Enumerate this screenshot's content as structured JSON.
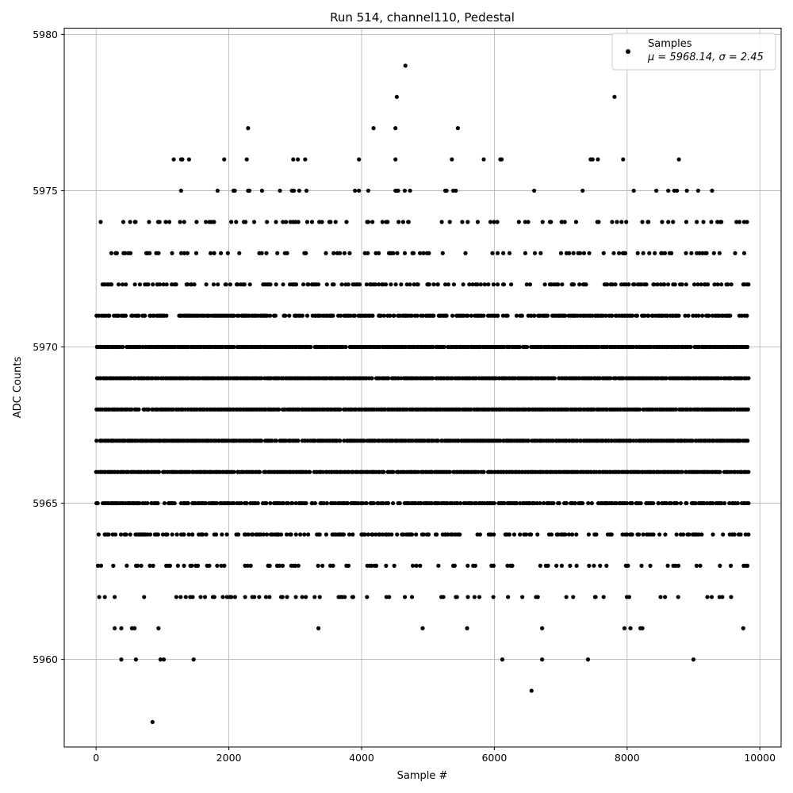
{
  "chart_data": {
    "type": "scatter",
    "title": "Run 514, channel110, Pedestal",
    "xlabel": "Sample #",
    "ylabel": "ADC Counts",
    "xlim": [
      -480,
      10320
    ],
    "ylim": [
      5957.2,
      5980.2
    ],
    "xticks": [
      0,
      2000,
      4000,
      6000,
      8000,
      10000
    ],
    "xtick_labels": [
      "0",
      "2000",
      "4000",
      "6000",
      "8000",
      "10000"
    ],
    "yticks": [
      5960,
      5965,
      5970,
      5975,
      5980
    ],
    "ytick_labels": [
      "5960",
      "5965",
      "5970",
      "5975",
      "5980"
    ],
    "grid": true,
    "legend": {
      "placement": "top-right",
      "label": "Samples",
      "stats_prefix": "μ = 5968.14, ",
      "stats_suffix": "σ = 2.45"
    },
    "series": [
      {
        "name": "Samples",
        "color": "#000000",
        "marker": "circle",
        "count": 9830,
        "x_start": 0,
        "x_end": 9829,
        "integer_values": true,
        "mean": 5968.14,
        "std": 2.45,
        "row_coverage": [
          {
            "y": 5958,
            "density": "single",
            "x": [
              850
            ]
          },
          {
            "y": 5959,
            "density": "single",
            "x": [
              6560
            ]
          },
          {
            "y": 5960,
            "density": "rare",
            "x": [
              380,
              600,
              970,
              1020,
              1470,
              6120,
              6720,
              7410,
              9000
            ]
          },
          {
            "y": 5961,
            "density": "rare",
            "x": [
              280,
              380,
              540,
              580,
              940,
              3350,
              4920,
              5590,
              6720,
              7960,
              8050,
              8200,
              8230,
              9750
            ]
          },
          {
            "y": 5962,
            "density": "sparse"
          },
          {
            "y": 5963,
            "density": "sparse"
          },
          {
            "y": 5964,
            "density": "medium"
          },
          {
            "y": 5965,
            "density": "dense"
          },
          {
            "y": 5966,
            "density": "full"
          },
          {
            "y": 5967,
            "density": "full"
          },
          {
            "y": 5968,
            "density": "full"
          },
          {
            "y": 5969,
            "density": "full"
          },
          {
            "y": 5970,
            "density": "full"
          },
          {
            "y": 5971,
            "density": "dense"
          },
          {
            "y": 5972,
            "density": "medium"
          },
          {
            "y": 5973,
            "density": "sparse"
          },
          {
            "y": 5974,
            "density": "sparse"
          },
          {
            "y": 5975,
            "density": "rare",
            "x": [
              1280,
              1830,
              2070,
              2090,
              2290,
              2310,
              2500,
              2770,
              2950,
              2980,
              3060,
              3170,
              3900,
              3960,
              4100,
              4510,
              4530,
              4550,
              4650,
              4730,
              5260,
              5280,
              5380,
              5420,
              6600,
              7330,
              8100,
              8440,
              8620,
              8710,
              8750,
              8900,
              9070,
              9280
            ]
          },
          {
            "y": 5976,
            "density": "rare",
            "x": [
              1170,
              1280,
              1300,
              1400,
              1930,
              2270,
              2970,
              3040,
              3150,
              3960,
              4510,
              5360,
              5840,
              6090,
              6110,
              7450,
              7480,
              7560,
              7940,
              8780
            ]
          },
          {
            "y": 5977,
            "density": "rare",
            "x": [
              2290,
              4180,
              4510,
              5450
            ]
          },
          {
            "y": 5978,
            "density": "rare",
            "x": [
              4530,
              7810
            ]
          },
          {
            "y": 5979,
            "density": "rare",
            "x": [
              4660
            ]
          }
        ]
      }
    ]
  }
}
